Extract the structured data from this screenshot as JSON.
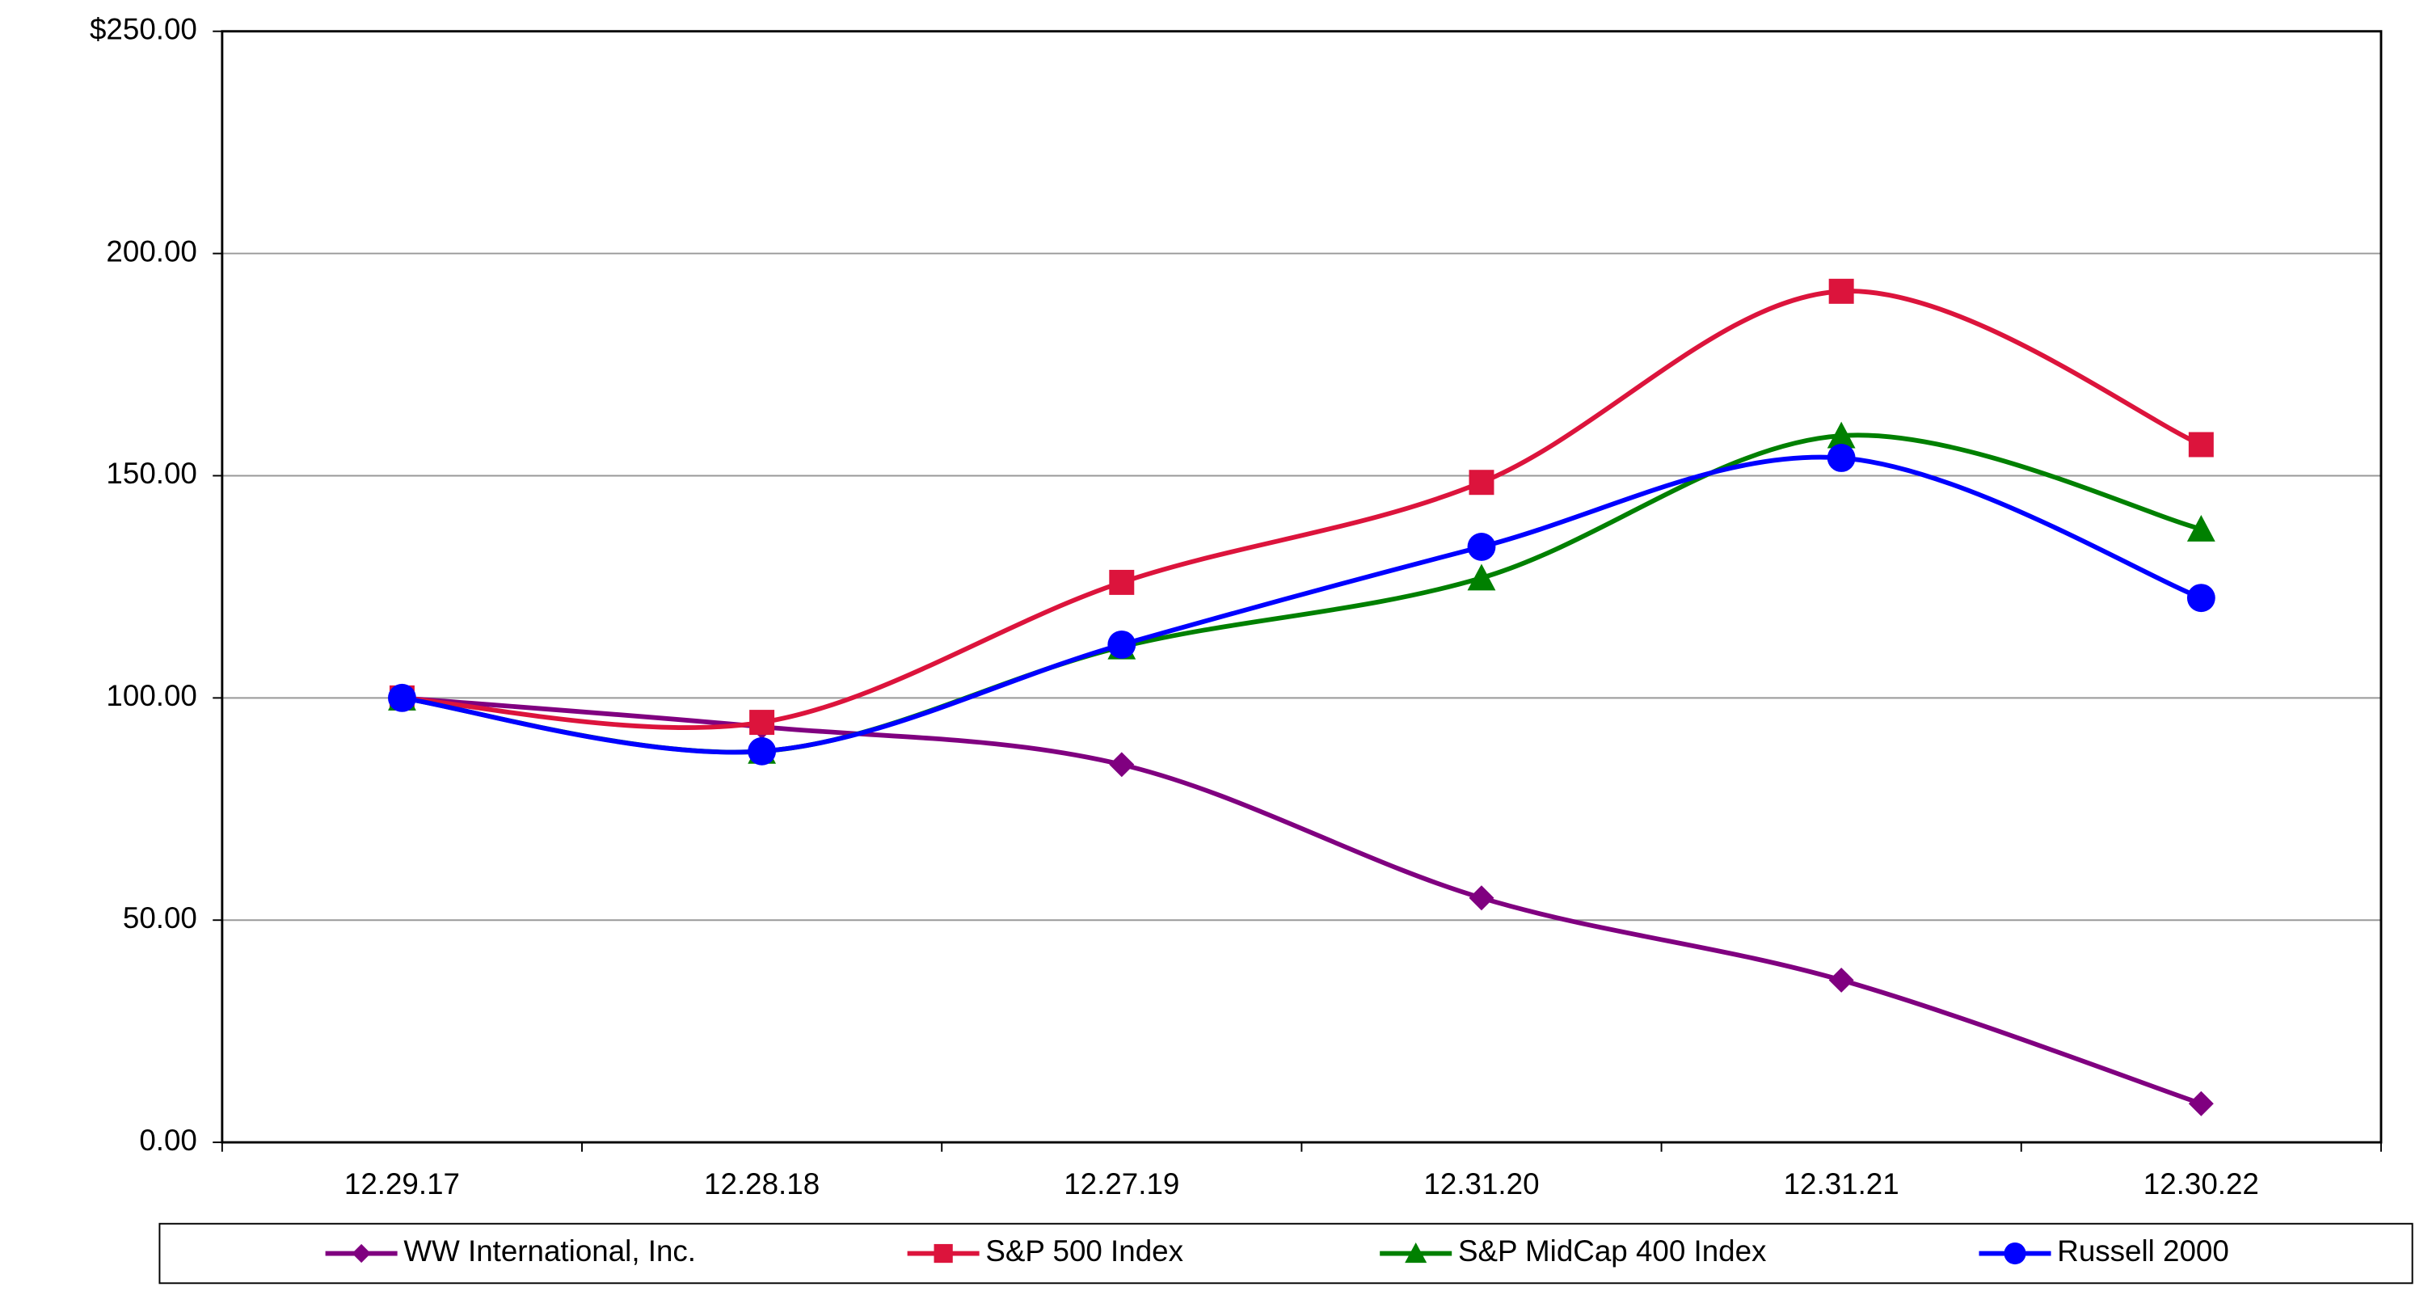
{
  "chart_data": {
    "type": "line",
    "categories": [
      "12.29.17",
      "12.28.18",
      "12.27.19",
      "12.31.20",
      "12.31.21",
      "12.30.22"
    ],
    "series": [
      {
        "name": "WW International, Inc.",
        "color": "#800080",
        "marker": "diamond",
        "values": [
          100,
          93.5,
          85,
          55,
          36.5,
          8.7
        ]
      },
      {
        "name": "S&P 500 Index",
        "color": "#dc143c",
        "marker": "square",
        "values": [
          100,
          94.5,
          126,
          148.5,
          191.5,
          157
        ]
      },
      {
        "name": "S&P MidCap 400 Index",
        "color": "#008000",
        "marker": "triangle",
        "values": [
          100,
          88,
          111.5,
          127,
          159,
          138
        ]
      },
      {
        "name": "Russell 2000",
        "color": "#0000ff",
        "marker": "circle",
        "values": [
          100,
          88,
          112,
          134,
          154,
          122.5
        ]
      }
    ],
    "ylim": [
      0,
      250
    ],
    "yticks": [
      {
        "value": 0,
        "label": "0.00"
      },
      {
        "value": 50,
        "label": "50.00"
      },
      {
        "value": 100,
        "label": "100.00"
      },
      {
        "value": 150,
        "label": "150.00"
      },
      {
        "value": 200,
        "label": "200.00"
      },
      {
        "value": 250,
        "label": "$250.00"
      }
    ],
    "grid": true,
    "smooth": true,
    "legend": "bottom"
  }
}
